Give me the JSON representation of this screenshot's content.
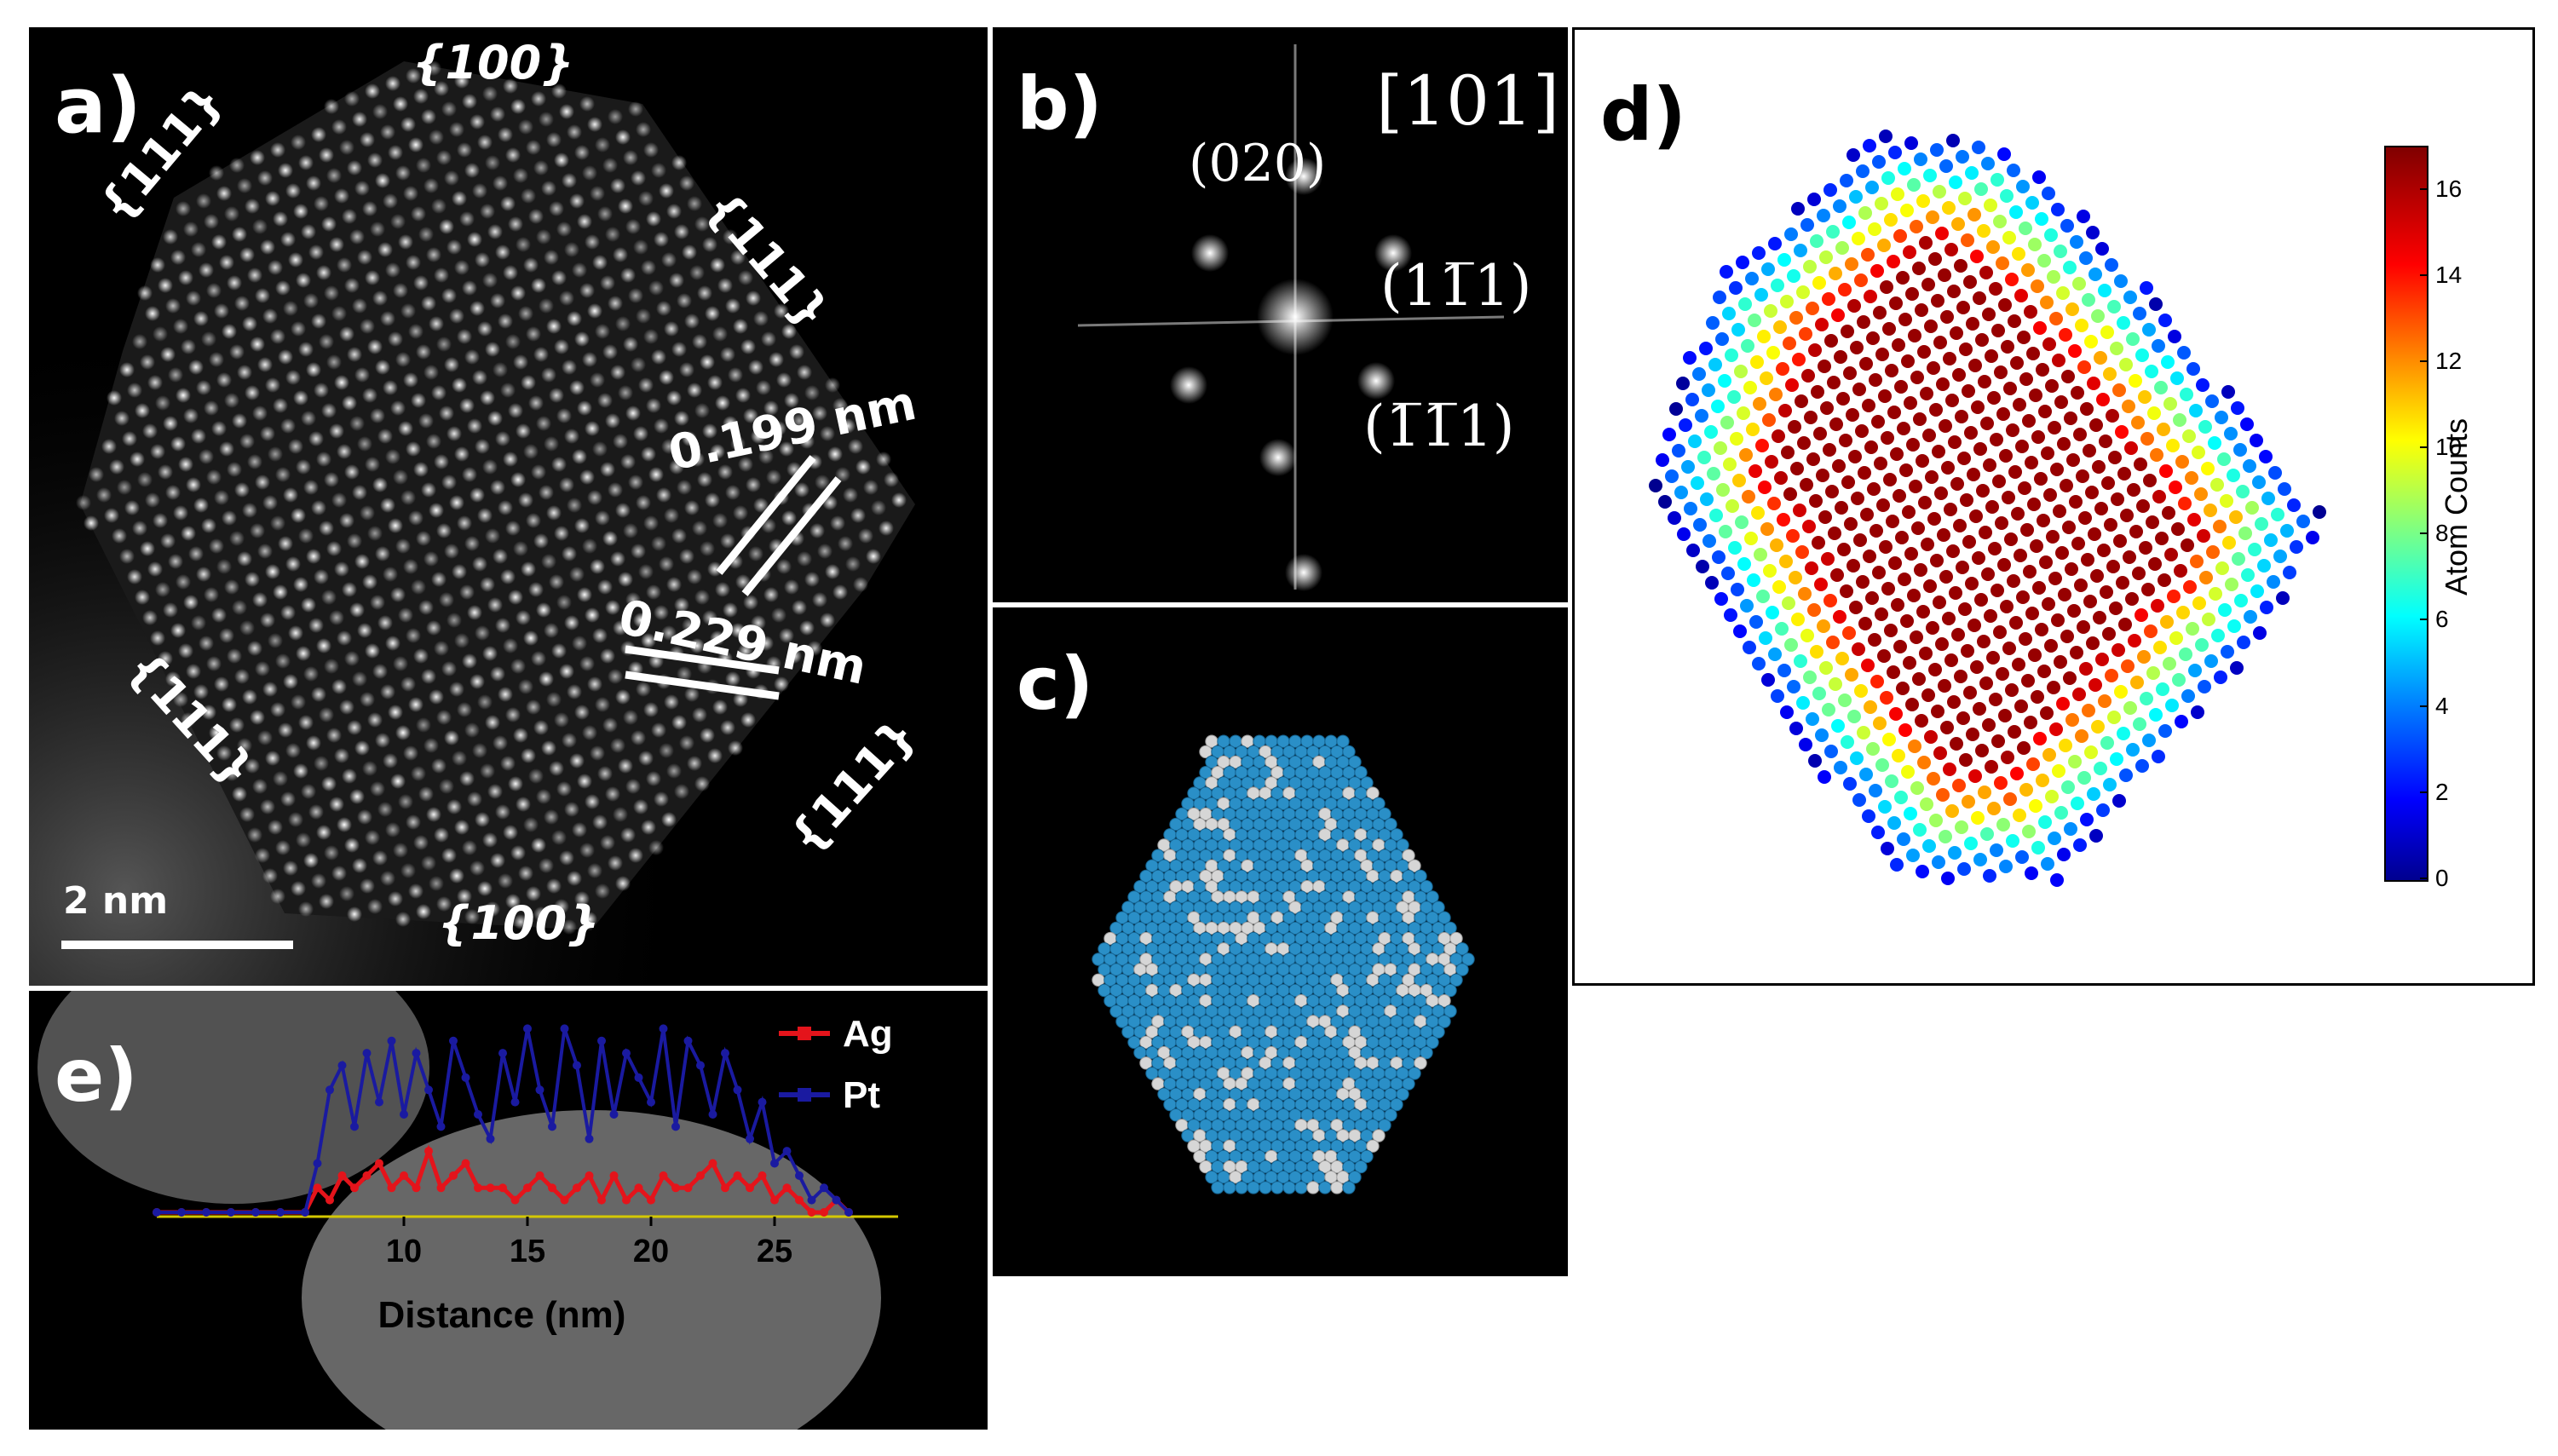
{
  "panels": {
    "a": {
      "label": "a)",
      "facets": {
        "top": "{100}",
        "bottom": "{100}",
        "upper_left": "{111}",
        "upper_right": "{111}",
        "lower_left": "{111}",
        "lower_right": "{111}"
      },
      "spacing_1": "0.199 nm",
      "spacing_2": "0.229 nm",
      "scale_bar": "2 nm"
    },
    "b": {
      "label": "b)",
      "zone_axis": "[101]",
      "spot_020": "(020)",
      "spot_11bar1": "(11̅1)",
      "spot_1bar1bar1": "(1̅1̅1)"
    },
    "c": {
      "label": "c)"
    },
    "d": {
      "label": "d)",
      "colorbar_label": "Atom Counts",
      "colorbar_ticks": [
        "0",
        "2",
        "4",
        "6",
        "8",
        "10",
        "12",
        "14",
        "16"
      ],
      "colorbar_range": [
        0,
        17
      ]
    },
    "e": {
      "label": "e)"
    }
  },
  "chart_data": {
    "type": "line",
    "title": "",
    "xlabel": "Distance (nm)",
    "ylabel": "",
    "xlim": [
      0,
      30
    ],
    "ylim": [
      0,
      16
    ],
    "xticks": [
      "10",
      "15",
      "20",
      "25"
    ],
    "legend": [
      "Ag",
      "Pt"
    ],
    "legend_position": "top-right",
    "colors": {
      "Ag": "#e4141b",
      "Pt": "#1a1aa0"
    },
    "x": [
      0,
      1,
      2,
      3,
      4,
      5,
      6,
      6.5,
      7,
      7.5,
      8,
      8.5,
      9,
      9.5,
      10,
      10.5,
      11,
      11.5,
      12,
      12.5,
      13,
      13.5,
      14,
      14.5,
      15,
      15.5,
      16,
      16.5,
      17,
      17.5,
      18,
      18.5,
      19,
      19.5,
      20,
      20.5,
      21,
      21.5,
      22,
      22.5,
      23,
      23.5,
      24,
      24.5,
      25,
      25.5,
      26,
      26.5,
      27,
      27.5,
      28
    ],
    "series": [
      {
        "name": "Ag",
        "values": [
          0,
          0,
          0,
          0,
          0,
          0,
          0,
          2,
          1,
          3,
          2,
          3,
          4,
          2,
          3,
          2,
          5,
          2,
          3,
          4,
          2,
          2,
          2,
          1,
          2,
          3,
          2,
          1,
          2,
          3,
          1,
          3,
          1,
          2,
          1,
          3,
          2,
          2,
          3,
          4,
          2,
          3,
          2,
          3,
          1,
          2,
          1,
          0,
          0,
          1,
          0
        ]
      },
      {
        "name": "Pt",
        "values": [
          0,
          0,
          0,
          0,
          0,
          0,
          0,
          4,
          10,
          12,
          7,
          13,
          9,
          14,
          8,
          13,
          10,
          7,
          14,
          11,
          8,
          6,
          13,
          9,
          15,
          10,
          7,
          15,
          12,
          6,
          14,
          8,
          13,
          11,
          9,
          15,
          7,
          14,
          12,
          8,
          13,
          10,
          6,
          9,
          4,
          5,
          3,
          1,
          2,
          1,
          0
        ]
      }
    ]
  }
}
